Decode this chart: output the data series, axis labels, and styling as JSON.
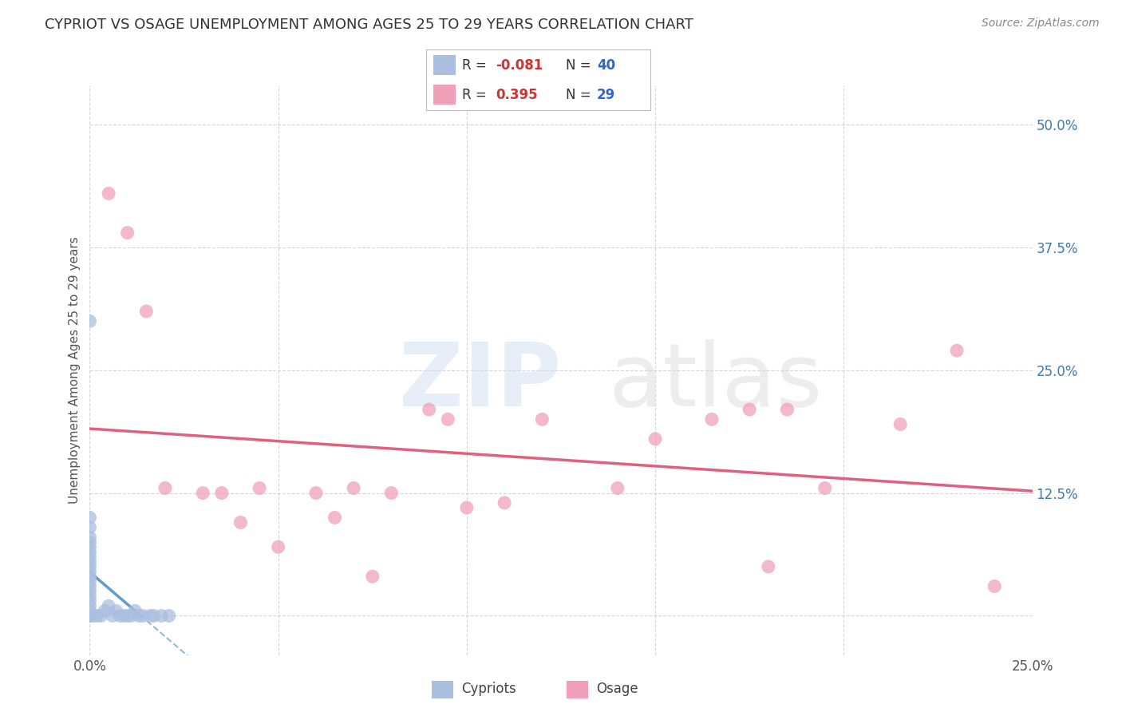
{
  "title": "CYPRIOT VS OSAGE UNEMPLOYMENT AMONG AGES 25 TO 29 YEARS CORRELATION CHART",
  "source": "Source: ZipAtlas.com",
  "ylabel": "Unemployment Among Ages 25 to 29 years",
  "xlim": [
    0.0,
    0.25
  ],
  "ylim": [
    -0.04,
    0.54
  ],
  "xticks": [
    0.0,
    0.05,
    0.1,
    0.15,
    0.2,
    0.25
  ],
  "yticks": [
    0.0,
    0.125,
    0.25,
    0.375,
    0.5
  ],
  "background_color": "#ffffff",
  "grid_color": "#cccccc",
  "cypriot_x": [
    0.0,
    0.0,
    0.0,
    0.0,
    0.0,
    0.0,
    0.0,
    0.0,
    0.0,
    0.0,
    0.0,
    0.0,
    0.0,
    0.0,
    0.0,
    0.0,
    0.0,
    0.0,
    0.0,
    0.0,
    0.0,
    0.001,
    0.002,
    0.003,
    0.004,
    0.005,
    0.006,
    0.007,
    0.008,
    0.009,
    0.01,
    0.011,
    0.012,
    0.013,
    0.014,
    0.016,
    0.017,
    0.019,
    0.021,
    0.0
  ],
  "cypriot_y": [
    0.1,
    0.09,
    0.08,
    0.075,
    0.07,
    0.065,
    0.06,
    0.055,
    0.05,
    0.045,
    0.04,
    0.035,
    0.03,
    0.025,
    0.02,
    0.015,
    0.01,
    0.005,
    0.0,
    0.0,
    0.0,
    0.0,
    0.0,
    0.0,
    0.005,
    0.01,
    0.0,
    0.005,
    0.0,
    0.0,
    0.0,
    0.0,
    0.005,
    0.0,
    0.0,
    0.0,
    0.0,
    0.0,
    0.0,
    0.3
  ],
  "osage_x": [
    0.005,
    0.01,
    0.015,
    0.02,
    0.03,
    0.035,
    0.04,
    0.045,
    0.05,
    0.06,
    0.065,
    0.07,
    0.075,
    0.08,
    0.09,
    0.095,
    0.1,
    0.11,
    0.12,
    0.14,
    0.15,
    0.165,
    0.175,
    0.18,
    0.185,
    0.195,
    0.215,
    0.23,
    0.24
  ],
  "osage_y": [
    0.43,
    0.39,
    0.31,
    0.13,
    0.125,
    0.125,
    0.095,
    0.13,
    0.07,
    0.125,
    0.1,
    0.13,
    0.04,
    0.125,
    0.21,
    0.2,
    0.11,
    0.115,
    0.2,
    0.13,
    0.18,
    0.2,
    0.21,
    0.05,
    0.21,
    0.13,
    0.195,
    0.27,
    0.03
  ],
  "cypriot_color": "#aabfdf",
  "osage_color": "#f0a0b8",
  "cypriot_line_color": "#6699cc",
  "osage_line_color": "#e06080",
  "R_cypriot": -0.081,
  "N_cypriot": 40,
  "R_osage": 0.395,
  "N_osage": 29
}
